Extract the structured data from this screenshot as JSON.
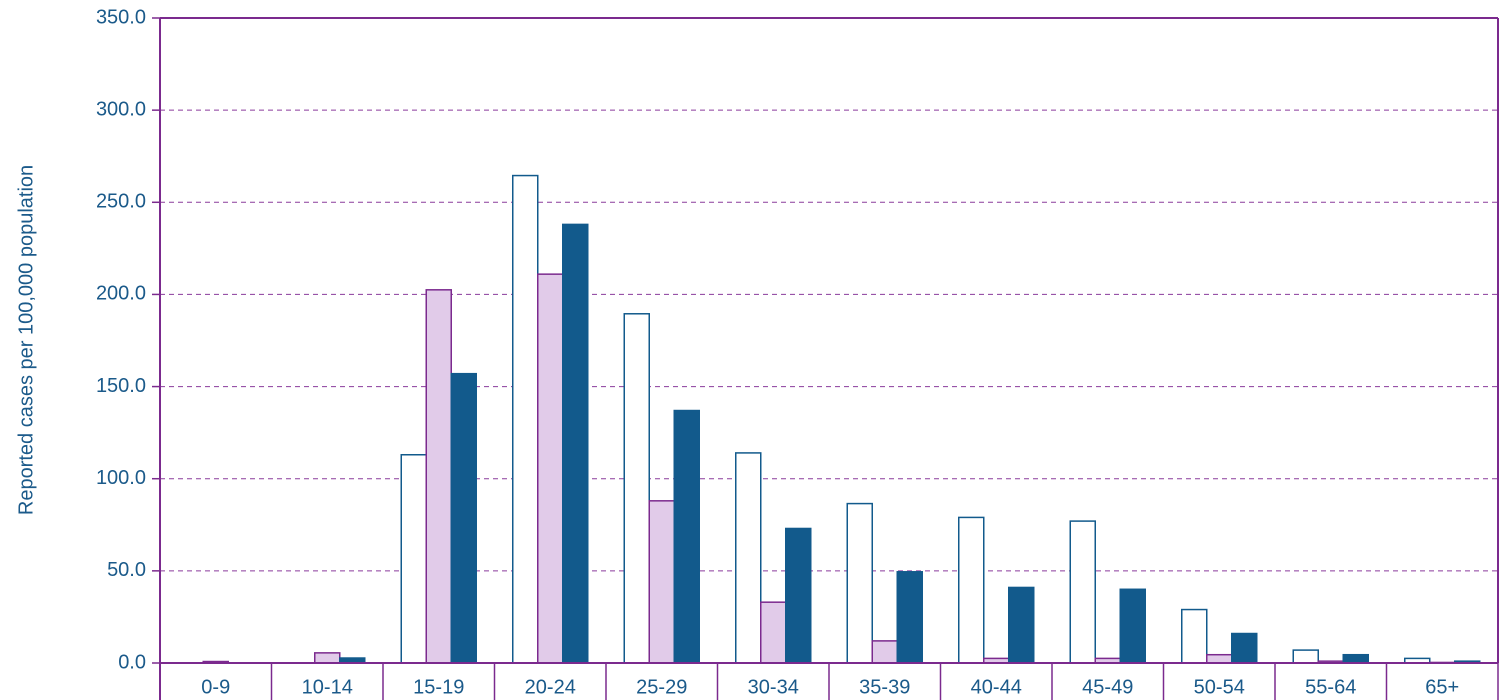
{
  "chart_data": {
    "type": "bar",
    "y_label": "Reported cases per 100,000 population",
    "categories": [
      "0-9",
      "10-14",
      "15-19",
      "20-24",
      "25-29",
      "30-34",
      "35-39",
      "40-44",
      "45-49",
      "50-54",
      "55-64",
      "65+"
    ],
    "series": [
      {
        "color": "#ffffff",
        "stroke": "#125a8c",
        "values": [
          0,
          0,
          113,
          264.5,
          189.5,
          114,
          86.5,
          79,
          77,
          29,
          7,
          2.5
        ]
      },
      {
        "color": "#e1cbe9",
        "stroke": "#7b2a8e",
        "values": [
          0.8,
          5.5,
          202.5,
          211,
          88,
          33,
          12,
          2.5,
          2.5,
          4.5,
          1,
          0.3
        ]
      },
      {
        "color": "#125a8c",
        "stroke": "#125a8c",
        "values": [
          0,
          2.7,
          157,
          238,
          137,
          73,
          49.5,
          41,
          40,
          16,
          4.5,
          1
        ]
      }
    ],
    "ylim": [
      0,
      350
    ],
    "yticks": [
      {
        "value": 0,
        "label": "0.0"
      },
      {
        "value": 50,
        "label": "50.0"
      },
      {
        "value": 100,
        "label": "100.0"
      },
      {
        "value": 150,
        "label": "150.0"
      },
      {
        "value": 200,
        "label": "200.0"
      },
      {
        "value": 250,
        "label": "250.0"
      },
      {
        "value": 300,
        "label": "300.0"
      },
      {
        "value": 350,
        "label": "350.0"
      }
    ],
    "grid": true
  }
}
